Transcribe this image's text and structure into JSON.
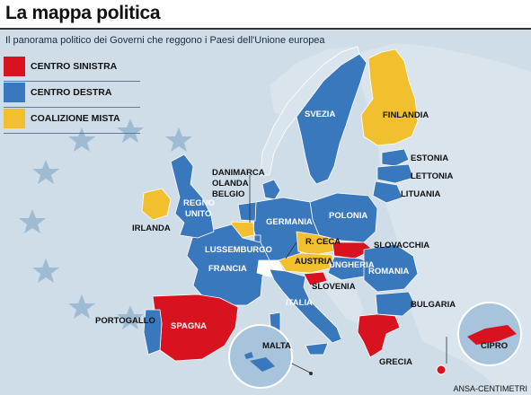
{
  "title": "La mappa politica",
  "subtitle": "Il panorama politico dei Governi che reggono i Paesi dell'Unione europea",
  "colors": {
    "sea": "#cfdde8",
    "non_eu": "#d9e4ec",
    "centro_sinistra": "#d8121f",
    "centro_destra": "#3a78bd",
    "coalizione_mista": "#f2c02e",
    "stars": "#9fbbd3"
  },
  "legend": [
    {
      "label": "CENTRO SINISTRA",
      "color": "#d8121f"
    },
    {
      "label": "CENTRO DESTRA",
      "color": "#3a78bd"
    },
    {
      "label": "COALIZIONE MISTA",
      "color": "#f2c02e"
    }
  ],
  "countries": {
    "irlanda": {
      "label": "IRLANDA",
      "group": "coalizione_mista"
    },
    "regno_unito": {
      "label": "REGNO UNITO",
      "label_lines": [
        "REGNO",
        "UNITO"
      ],
      "group": "centro_destra"
    },
    "danimarca": {
      "label": "DANIMARCA",
      "group": "centro_destra"
    },
    "olanda": {
      "label": "OLANDA",
      "group": "centro_destra"
    },
    "belgio": {
      "label": "BELGIO",
      "group": "coalizione_mista"
    },
    "lussemburgo": {
      "label": "LUSSEMBURGO",
      "group": "centro_destra"
    },
    "francia": {
      "label": "FRANCIA",
      "group": "centro_destra"
    },
    "germania": {
      "label": "GERMANIA",
      "group": "centro_destra"
    },
    "polonia": {
      "label": "POLONIA",
      "group": "centro_destra"
    },
    "svezia": {
      "label": "SVEZIA",
      "group": "centro_destra"
    },
    "finlandia": {
      "label": "FINLANDIA",
      "group": "coalizione_mista"
    },
    "estonia": {
      "label": "ESTONIA",
      "group": "centro_destra"
    },
    "lettonia": {
      "label": "LETTONIA",
      "group": "centro_destra"
    },
    "lituania": {
      "label": "LITUANIA",
      "group": "centro_destra"
    },
    "r_ceca": {
      "label": "R. CECA",
      "group": "coalizione_mista"
    },
    "slovacchia": {
      "label": "SLOVACCHIA",
      "group": "centro_sinistra"
    },
    "austria": {
      "label": "AUSTRIA",
      "group": "coalizione_mista"
    },
    "ungheria": {
      "label": "UNGHERIA",
      "group": "centro_destra"
    },
    "slovenia": {
      "label": "SLOVENIA",
      "group": "centro_sinistra"
    },
    "romania": {
      "label": "ROMANIA",
      "group": "centro_destra"
    },
    "bulgaria": {
      "label": "BULGARIA",
      "group": "centro_destra"
    },
    "italia": {
      "label": "ITALIA",
      "group": "centro_destra"
    },
    "spagna": {
      "label": "SPAGNA",
      "group": "centro_sinistra"
    },
    "portogallo": {
      "label": "PORTOGALLO",
      "group": "centro_destra"
    },
    "grecia": {
      "label": "GRECIA",
      "group": "centro_sinistra"
    },
    "malta": {
      "label": "MALTA",
      "group": "centro_destra"
    },
    "cipro": {
      "label": "CIPRO",
      "group": "centro_sinistra"
    }
  },
  "credit": "ANSA-CENTIMETRI"
}
